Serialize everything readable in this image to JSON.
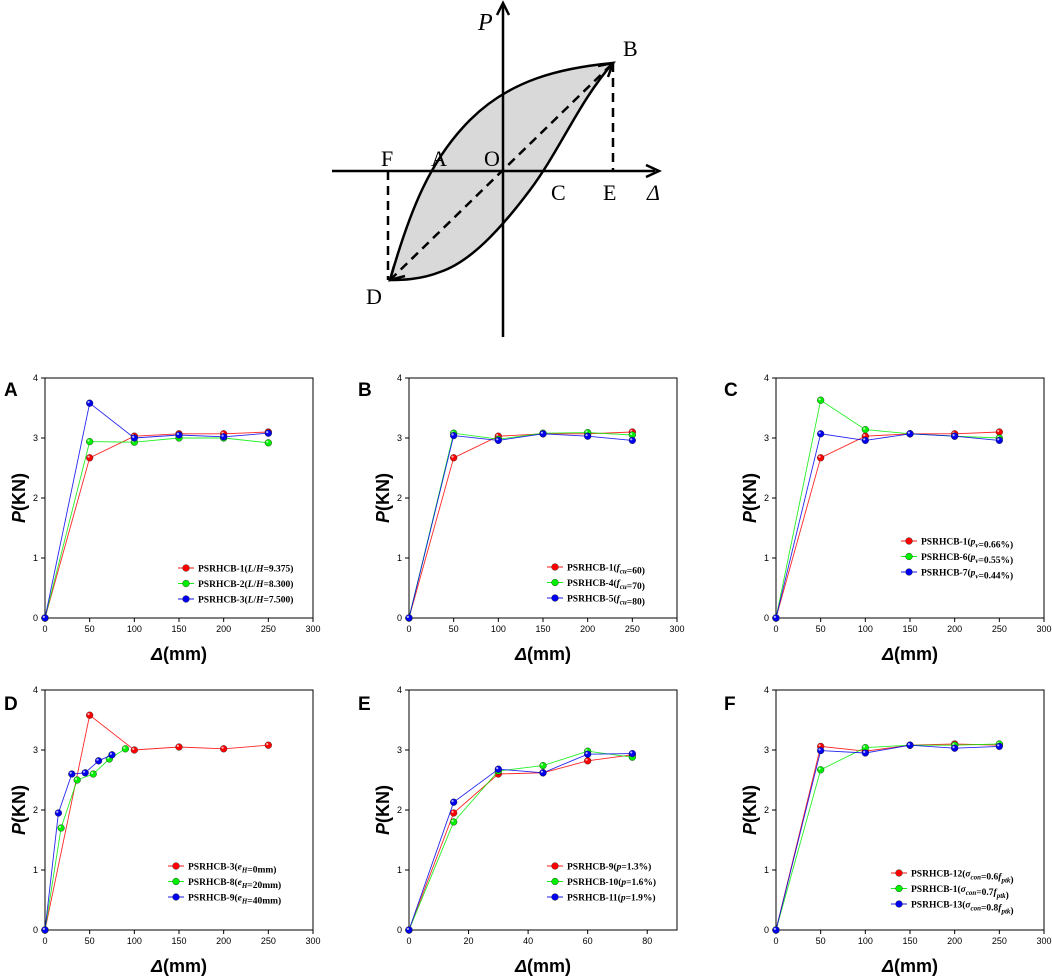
{
  "schematic": {
    "axis_y_label": "P",
    "axis_x_label": "Δ",
    "points": {
      "A": "A",
      "B": "B",
      "C": "C",
      "D": "D",
      "E": "E",
      "F": "F",
      "O": "O"
    }
  },
  "colors": {
    "red": "#ff0000",
    "green": "#00ee00",
    "blue": "#0000ee",
    "axis": "#000000",
    "loop_fill": "#d9d9d9"
  },
  "chart_data": [
    {
      "panel": "A",
      "type": "line",
      "xlabel_sym": "Δ",
      "xlabel_unit": "(mm)",
      "ylabel_sym": "P",
      "ylabel_unit": "(KN)",
      "xlim": [
        0,
        300
      ],
      "ylim": [
        0,
        4
      ],
      "xticks": [
        0,
        50,
        100,
        150,
        200,
        250,
        300
      ],
      "yticks": [
        0,
        1,
        2,
        3,
        4
      ],
      "series": [
        {
          "name": "PSRHCB-1",
          "param": "L/H",
          "value": "=9.375",
          "color": "red",
          "x": [
            0,
            50,
            100,
            150,
            200,
            250
          ],
          "y": [
            0,
            2.67,
            3.03,
            3.07,
            3.07,
            3.1
          ]
        },
        {
          "name": "PSRHCB-2",
          "param": "L/H",
          "value": "=8.300",
          "color": "green",
          "x": [
            0,
            50,
            100,
            150,
            200,
            250
          ],
          "y": [
            0,
            2.94,
            2.93,
            3.0,
            3.0,
            2.92
          ]
        },
        {
          "name": "PSRHCB-3",
          "param": "L/H",
          "value": "=7.500",
          "color": "blue",
          "x": [
            0,
            50,
            100,
            150,
            200,
            250
          ],
          "y": [
            0,
            3.58,
            3.0,
            3.05,
            3.02,
            3.08
          ]
        }
      ]
    },
    {
      "panel": "B",
      "type": "line",
      "xlabel_sym": "Δ",
      "xlabel_unit": "(mm)",
      "ylabel_sym": "P",
      "ylabel_unit": "(KN)",
      "xlim": [
        0,
        300
      ],
      "ylim": [
        0,
        4
      ],
      "xticks": [
        0,
        50,
        100,
        150,
        200,
        250,
        300
      ],
      "yticks": [
        0,
        1,
        2,
        3,
        4
      ],
      "series": [
        {
          "name": "PSRHCB-1",
          "param": "fcu",
          "value": "=60",
          "color": "red",
          "x": [
            0,
            50,
            100,
            150,
            200,
            250
          ],
          "y": [
            0,
            2.67,
            3.03,
            3.07,
            3.07,
            3.1
          ]
        },
        {
          "name": "PSRHCB-4",
          "param": "fcu",
          "value": "=70",
          "color": "green",
          "x": [
            0,
            50,
            100,
            150,
            200,
            250
          ],
          "y": [
            0,
            3.08,
            2.98,
            3.08,
            3.09,
            3.05
          ]
        },
        {
          "name": "PSRHCB-5",
          "param": "fcu",
          "value": "=80",
          "color": "blue",
          "x": [
            0,
            50,
            100,
            150,
            200,
            250
          ],
          "y": [
            0,
            3.04,
            2.96,
            3.07,
            3.03,
            2.96
          ]
        }
      ]
    },
    {
      "panel": "C",
      "type": "line",
      "xlabel_sym": "Δ",
      "xlabel_unit": "(mm)",
      "ylabel_sym": "P",
      "ylabel_unit": "(KN)",
      "xlim": [
        0,
        300
      ],
      "ylim": [
        0,
        4
      ],
      "xticks": [
        0,
        50,
        100,
        150,
        200,
        250,
        300
      ],
      "yticks": [
        0,
        1,
        2,
        3,
        4
      ],
      "series": [
        {
          "name": "PSRHCB-1",
          "param": "pv",
          "value": "=0.66%",
          "color": "red",
          "x": [
            0,
            50,
            100,
            150,
            200,
            250
          ],
          "y": [
            0,
            2.67,
            3.03,
            3.07,
            3.07,
            3.1
          ]
        },
        {
          "name": "PSRHCB-6",
          "param": "pv",
          "value": "=0.55%",
          "color": "green",
          "x": [
            0,
            50,
            100,
            150,
            200,
            250
          ],
          "y": [
            0,
            3.63,
            3.14,
            3.07,
            3.03,
            3.0
          ]
        },
        {
          "name": "PSRHCB-7",
          "param": "pv",
          "value": "=0.44%",
          "color": "blue",
          "x": [
            0,
            50,
            100,
            150,
            200,
            250
          ],
          "y": [
            0,
            3.07,
            2.96,
            3.07,
            3.03,
            2.96
          ]
        }
      ]
    },
    {
      "panel": "D",
      "type": "line",
      "xlabel_sym": "Δ",
      "xlabel_unit": "(mm)",
      "ylabel_sym": "P",
      "ylabel_unit": "(KN)",
      "xlim": [
        0,
        300
      ],
      "ylim": [
        0,
        4
      ],
      "xticks": [
        0,
        50,
        100,
        150,
        200,
        250,
        300
      ],
      "yticks": [
        0,
        1,
        2,
        3,
        4
      ],
      "series": [
        {
          "name": "PSRHCB-3",
          "param": "eH",
          "value": "=0mm",
          "color": "red",
          "x": [
            0,
            50,
            100,
            150,
            200,
            250
          ],
          "y": [
            0,
            3.58,
            3.0,
            3.05,
            3.02,
            3.08
          ]
        },
        {
          "name": "PSRHCB-8",
          "param": "eH",
          "value": "=20mm",
          "color": "green",
          "x": [
            0,
            18,
            36,
            54,
            72,
            90
          ],
          "y": [
            0,
            1.7,
            2.5,
            2.6,
            2.85,
            3.02
          ]
        },
        {
          "name": "PSRHCB-9",
          "param": "eH",
          "value": "=40mm",
          "color": "blue",
          "x": [
            0,
            15,
            30,
            45,
            60,
            75
          ],
          "y": [
            0,
            1.95,
            2.6,
            2.62,
            2.82,
            2.92
          ]
        }
      ]
    },
    {
      "panel": "E",
      "type": "line",
      "xlabel_sym": "Δ",
      "xlabel_unit": "(mm)",
      "ylabel_sym": "P",
      "ylabel_unit": "(KN)",
      "xlim": [
        0,
        90
      ],
      "ylim": [
        0,
        4
      ],
      "xticks": [
        0,
        20,
        40,
        60,
        80
      ],
      "yticks": [
        0,
        1,
        2,
        3,
        4
      ],
      "series": [
        {
          "name": "PSRHCB-9",
          "param": "p",
          "value": "=1.3%",
          "color": "red",
          "x": [
            0,
            15,
            30,
            45,
            60,
            75
          ],
          "y": [
            0,
            1.95,
            2.6,
            2.62,
            2.82,
            2.92
          ]
        },
        {
          "name": "PSRHCB-10",
          "param": "p",
          "value": "=1.6%",
          "color": "green",
          "x": [
            0,
            15,
            30,
            45,
            60,
            75
          ],
          "y": [
            0,
            1.8,
            2.65,
            2.74,
            2.98,
            2.88
          ]
        },
        {
          "name": "PSRHCB-11",
          "param": "p",
          "value": "=1.9%",
          "color": "blue",
          "x": [
            0,
            15,
            30,
            45,
            60,
            75
          ],
          "y": [
            0,
            2.13,
            2.68,
            2.62,
            2.93,
            2.94
          ]
        }
      ]
    },
    {
      "panel": "F",
      "type": "line",
      "xlabel_sym": "Δ",
      "xlabel_unit": "(mm)",
      "ylabel_sym": "P",
      "ylabel_unit": "(KN)",
      "xlim": [
        0,
        300
      ],
      "ylim": [
        0,
        4
      ],
      "xticks": [
        0,
        50,
        100,
        150,
        200,
        250,
        300
      ],
      "yticks": [
        0,
        1,
        2,
        3,
        4
      ],
      "series": [
        {
          "name": "PSRHCB-12",
          "param": "σcon",
          "value": "=0.6fptk",
          "color": "red",
          "x": [
            0,
            50,
            100,
            150,
            200,
            250
          ],
          "y": [
            0,
            3.06,
            2.98,
            3.08,
            3.1,
            3.08
          ]
        },
        {
          "name": "PSRHCB-1",
          "param": "σcon",
          "value": "=0.7fptk",
          "color": "green",
          "x": [
            0,
            50,
            100,
            150,
            200,
            250
          ],
          "y": [
            0,
            2.67,
            3.04,
            3.08,
            3.08,
            3.1
          ]
        },
        {
          "name": "PSRHCB-13",
          "param": "σcon",
          "value": "=0.8fptk",
          "color": "blue",
          "x": [
            0,
            50,
            100,
            150,
            200,
            250
          ],
          "y": [
            0,
            2.99,
            2.95,
            3.08,
            3.03,
            3.06
          ]
        }
      ]
    }
  ]
}
